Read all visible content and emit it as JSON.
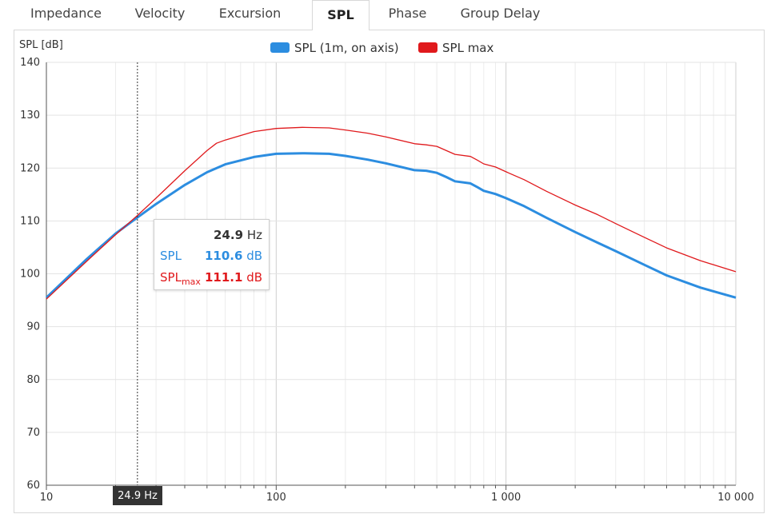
{
  "tabs": [
    "Impedance",
    "Velocity",
    "Excursion",
    "SPL",
    "Phase",
    "Group Delay"
  ],
  "active_tab": "SPL",
  "colors": {
    "spl": "#2c8de0",
    "spl_max": "#e0191c",
    "crosshair": "#333333",
    "grid": "#e6e6e6"
  },
  "tooltip": {
    "freq_value": "24.9",
    "freq_unit": "Hz",
    "spl_label": "SPL",
    "spl_value": "110.6",
    "spl_unit": "dB",
    "splmax_label": "SPL",
    "splmax_sub": "max",
    "splmax_value": "111.1",
    "splmax_unit": "dB"
  },
  "crosshair_label": "24.9 Hz",
  "chart_data": {
    "type": "line",
    "ylabel": "SPL [dB]",
    "xscale": "log",
    "xlim": [
      10,
      10000
    ],
    "ylim": [
      60,
      140
    ],
    "yticks": [
      60,
      70,
      80,
      90,
      100,
      110,
      120,
      130,
      140
    ],
    "xticks": [
      10,
      100,
      1000,
      10000
    ],
    "xtick_labels": [
      "10",
      "100",
      "1 000",
      "10 000"
    ],
    "grid": true,
    "legend_position": "top",
    "crosshair_x": 24.9,
    "series": [
      {
        "name": "SPL (1m, on axis)",
        "color": "#2c8de0",
        "x": [
          10,
          15,
          20,
          25,
          30,
          40,
          50,
          60,
          80,
          100,
          130,
          170,
          200,
          250,
          300,
          400,
          450,
          500,
          550,
          600,
          700,
          750,
          800,
          900,
          1000,
          1200,
          1500,
          2000,
          2500,
          3000,
          4000,
          5000,
          7000,
          10000
        ],
        "y": [
          95.5,
          102.8,
          107.6,
          110.7,
          113.2,
          116.8,
          119.2,
          120.7,
          122.1,
          122.7,
          122.8,
          122.7,
          122.3,
          121.6,
          120.9,
          119.6,
          119.5,
          119.1,
          118.3,
          117.5,
          117.1,
          116.4,
          115.7,
          115.1,
          114.3,
          112.8,
          110.6,
          107.9,
          105.9,
          104.3,
          101.7,
          99.7,
          97.4,
          95.5
        ]
      },
      {
        "name": "SPL max",
        "color": "#e0191c",
        "x": [
          10,
          15,
          20,
          25,
          30,
          40,
          50,
          55,
          60,
          80,
          100,
          130,
          170,
          200,
          250,
          300,
          400,
          450,
          500,
          550,
          600,
          700,
          750,
          800,
          900,
          1000,
          1200,
          1500,
          2000,
          2500,
          3000,
          4000,
          5000,
          7000,
          10000
        ],
        "y": [
          95.2,
          102.4,
          107.4,
          111.1,
          114.3,
          119.5,
          123.3,
          124.7,
          125.3,
          126.9,
          127.5,
          127.7,
          127.6,
          127.2,
          126.6,
          125.9,
          124.6,
          124.4,
          124.1,
          123.3,
          122.6,
          122.2,
          121.5,
          120.8,
          120.2,
          119.3,
          117.8,
          115.6,
          113.0,
          111.2,
          109.5,
          106.9,
          104.9,
          102.5,
          100.4
        ]
      }
    ]
  }
}
